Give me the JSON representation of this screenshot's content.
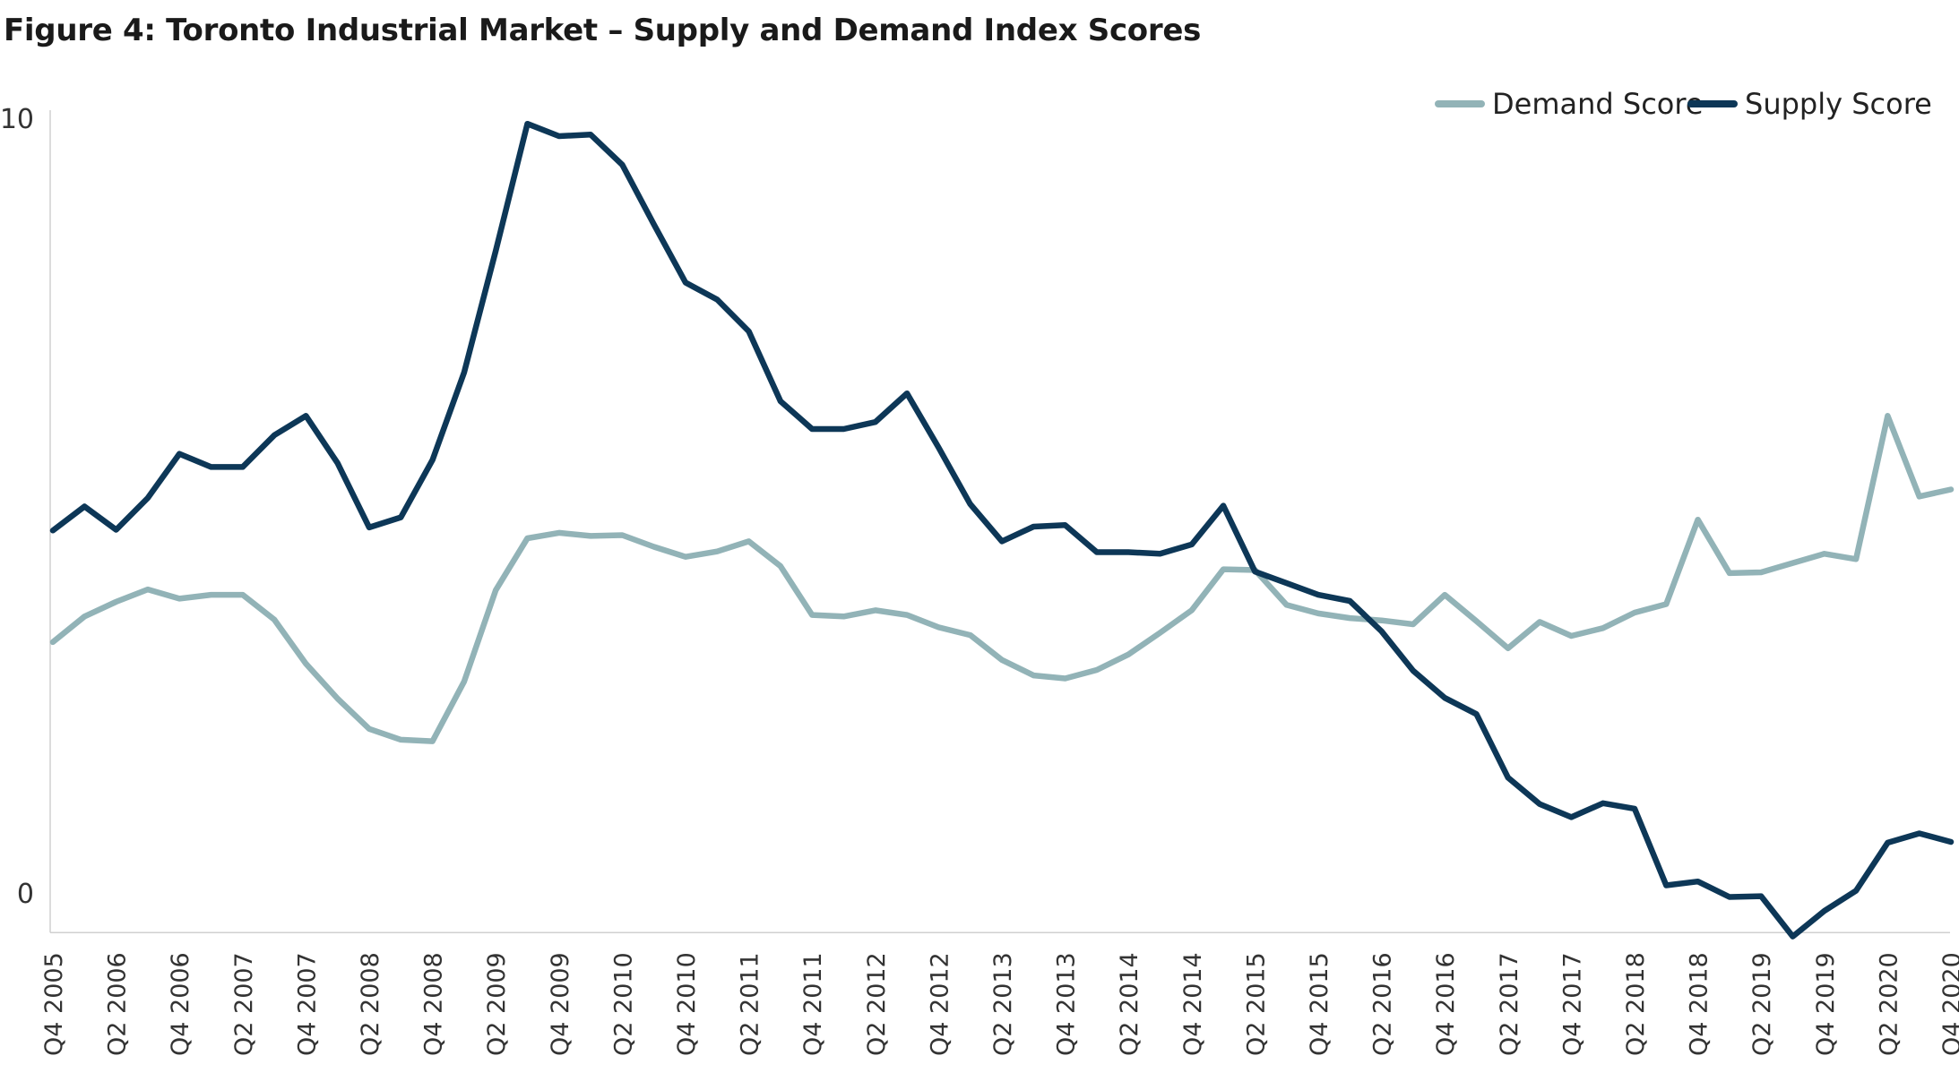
{
  "title": "Figure 4: Toronto Industrial Market – Supply and Demand Index Scores",
  "chart_data": {
    "type": "line",
    "title": "Figure 4: Toronto Industrial Market – Supply and Demand Index Scores",
    "xlabel": "",
    "ylabel": "",
    "ylim": [
      -0.5,
      10
    ],
    "yticks": [
      0,
      10
    ],
    "grid": false,
    "legend_position": "top-right",
    "x": [
      "Q4 2005",
      "Q1 2006",
      "Q2 2006",
      "Q3 2006",
      "Q4 2006",
      "Q1 2007",
      "Q2 2007",
      "Q3 2007",
      "Q4 2007",
      "Q1 2008",
      "Q2 2008",
      "Q3 2008",
      "Q4 2008",
      "Q1 2009",
      "Q2 2009",
      "Q3 2009",
      "Q4 2009",
      "Q1 2010",
      "Q2 2010",
      "Q3 2010",
      "Q4 2010",
      "Q1 2011",
      "Q2 2011",
      "Q3 2011",
      "Q4 2011",
      "Q1 2012",
      "Q2 2012",
      "Q3 2012",
      "Q4 2012",
      "Q1 2013",
      "Q2 2013",
      "Q3 2013",
      "Q4 2013",
      "Q1 2014",
      "Q2 2014",
      "Q3 2014",
      "Q4 2014",
      "Q1 2015",
      "Q2 2015",
      "Q3 2015",
      "Q4 2015",
      "Q1 2016",
      "Q2 2016",
      "Q3 2016",
      "Q4 2016",
      "Q1 2017",
      "Q2 2017",
      "Q3 2017",
      "Q4 2017",
      "Q1 2018",
      "Q2 2018",
      "Q3 2018",
      "Q4 2018",
      "Q1 2019",
      "Q2 2019",
      "Q3 2019",
      "Q4 2019",
      "Q1 2020",
      "Q2 2020",
      "Q3 2020",
      "Q4 2020"
    ],
    "x_tick_labels": [
      "Q4 2005",
      "Q2 2006",
      "Q4 2006",
      "Q2 2007",
      "Q4 2007",
      "Q2 2008",
      "Q4 2008",
      "Q2 2009",
      "Q4 2009",
      "Q2 2010",
      "Q4 2010",
      "Q2 2011",
      "Q4 2011",
      "Q2 2012",
      "Q4 2012",
      "Q2 2013",
      "Q4 2013",
      "Q2 2014",
      "Q4 2014",
      "Q2 2015",
      "Q4 2015",
      "Q2 2016",
      "Q4 2016",
      "Q2 2017",
      "Q4 2017",
      "Q2 2018",
      "Q4 2018",
      "Q2 2019",
      "Q4 2019",
      "Q2 2020",
      "Q4 2020"
    ],
    "series": [
      {
        "name": "Demand Score",
        "color": "#92b3b7",
        "values": [
          3.25,
          3.58,
          3.77,
          3.93,
          3.81,
          3.86,
          3.86,
          3.54,
          2.97,
          2.52,
          2.13,
          1.99,
          1.97,
          2.74,
          3.92,
          4.59,
          4.66,
          4.62,
          4.63,
          4.48,
          4.35,
          4.42,
          4.55,
          4.23,
          3.6,
          3.58,
          3.66,
          3.6,
          3.44,
          3.34,
          3.02,
          2.82,
          2.78,
          2.89,
          3.09,
          3.37,
          3.66,
          4.19,
          4.18,
          3.73,
          3.62,
          3.56,
          3.53,
          3.48,
          3.86,
          3.52,
          3.17,
          3.51,
          3.33,
          3.43,
          3.63,
          3.74,
          4.83,
          4.14,
          4.15,
          4.27,
          4.39,
          4.32,
          6.17,
          5.13,
          5.22
        ]
      },
      {
        "name": "Supply Score",
        "color": "#0d3757",
        "values": [
          4.69,
          5.0,
          4.7,
          5.11,
          5.68,
          5.51,
          5.51,
          5.92,
          6.17,
          5.56,
          4.73,
          4.86,
          5.6,
          6.73,
          8.3,
          9.94,
          9.78,
          9.8,
          9.41,
          8.64,
          7.89,
          7.67,
          7.26,
          6.36,
          6.0,
          6.0,
          6.09,
          6.46,
          5.76,
          5.03,
          4.55,
          4.74,
          4.76,
          4.41,
          4.41,
          4.39,
          4.51,
          5.01,
          4.16,
          4.01,
          3.86,
          3.78,
          3.39,
          2.88,
          2.53,
          2.32,
          1.5,
          1.16,
          0.99,
          1.17,
          1.1,
          0.11,
          0.16,
          -0.04,
          -0.03,
          -0.55,
          -0.22,
          0.04,
          0.66,
          0.78,
          0.67
        ]
      }
    ]
  }
}
